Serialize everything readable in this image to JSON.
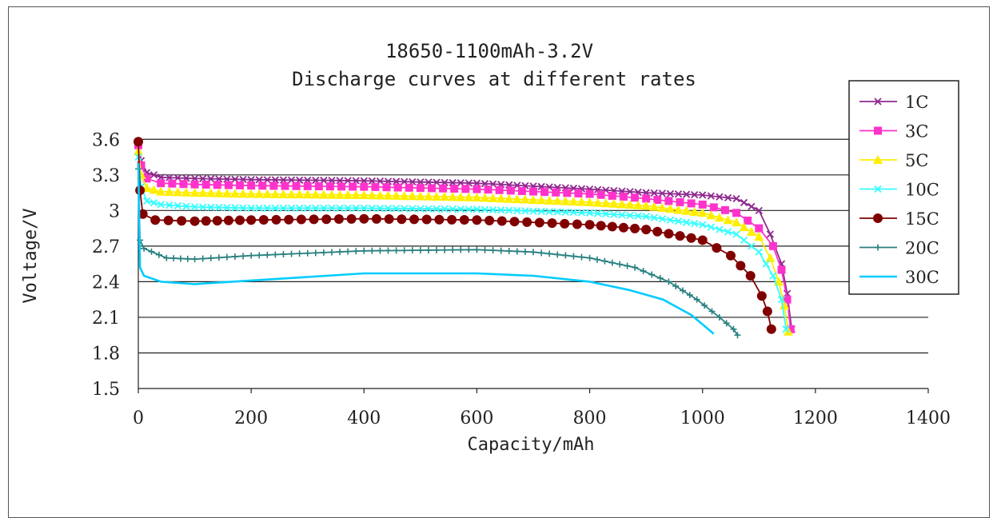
{
  "chart_data": {
    "type": "line",
    "title": "18650-1100mAh-3.2V",
    "subtitle": "Discharge curves at different rates",
    "xlabel": "Capacity/mAh",
    "ylabel": "Voltage/V",
    "xlim": [
      0,
      1400
    ],
    "ylim": [
      1.5,
      3.75
    ],
    "xticks": [
      "0",
      "200",
      "400",
      "600",
      "800",
      "1000",
      "1200",
      "1400"
    ],
    "yticks": [
      "3.6",
      "3.3",
      "3",
      "2.7",
      "2.4",
      "2.1",
      "1.8",
      "1.5"
    ],
    "grid": true,
    "legend": "right",
    "series": [
      {
        "name": "1C",
        "color": "#8e2a8e",
        "marker": "x",
        "points": [
          [
            0,
            3.58
          ],
          [
            5,
            3.42
          ],
          [
            15,
            3.32
          ],
          [
            40,
            3.28
          ],
          [
            100,
            3.27
          ],
          [
            200,
            3.26
          ],
          [
            400,
            3.25
          ],
          [
            600,
            3.23
          ],
          [
            800,
            3.18
          ],
          [
            900,
            3.15
          ],
          [
            1000,
            3.13
          ],
          [
            1060,
            3.1
          ],
          [
            1100,
            3.0
          ],
          [
            1120,
            2.8
          ],
          [
            1140,
            2.55
          ],
          [
            1150,
            2.3
          ],
          [
            1158,
            2.0
          ]
        ]
      },
      {
        "name": "3C",
        "color": "#ff33cc",
        "marker": "square",
        "points": [
          [
            0,
            3.55
          ],
          [
            5,
            3.38
          ],
          [
            15,
            3.27
          ],
          [
            40,
            3.23
          ],
          [
            100,
            3.22
          ],
          [
            200,
            3.21
          ],
          [
            400,
            3.2
          ],
          [
            600,
            3.18
          ],
          [
            800,
            3.14
          ],
          [
            900,
            3.1
          ],
          [
            1000,
            3.05
          ],
          [
            1060,
            2.98
          ],
          [
            1100,
            2.85
          ],
          [
            1125,
            2.7
          ],
          [
            1140,
            2.5
          ],
          [
            1150,
            2.25
          ],
          [
            1156,
            2.0
          ]
        ]
      },
      {
        "name": "5C",
        "color": "#ffee00",
        "marker": "triangle",
        "points": [
          [
            0,
            3.5
          ],
          [
            5,
            3.3
          ],
          [
            15,
            3.19
          ],
          [
            40,
            3.16
          ],
          [
            100,
            3.15
          ],
          [
            200,
            3.14
          ],
          [
            400,
            3.13
          ],
          [
            600,
            3.11
          ],
          [
            800,
            3.07
          ],
          [
            900,
            3.04
          ],
          [
            1000,
            2.98
          ],
          [
            1060,
            2.9
          ],
          [
            1100,
            2.78
          ],
          [
            1120,
            2.6
          ],
          [
            1135,
            2.4
          ],
          [
            1145,
            2.2
          ],
          [
            1152,
            1.98
          ]
        ]
      },
      {
        "name": "10C",
        "color": "#33ffff",
        "marker": "x",
        "points": [
          [
            0,
            3.45
          ],
          [
            5,
            3.2
          ],
          [
            15,
            3.08
          ],
          [
            40,
            3.05
          ],
          [
            100,
            3.03
          ],
          [
            200,
            3.02
          ],
          [
            400,
            3.02
          ],
          [
            600,
            3.01
          ],
          [
            800,
            2.98
          ],
          [
            900,
            2.95
          ],
          [
            1000,
            2.88
          ],
          [
            1060,
            2.8
          ],
          [
            1100,
            2.65
          ],
          [
            1125,
            2.45
          ],
          [
            1140,
            2.25
          ],
          [
            1148,
            2.0
          ]
        ]
      },
      {
        "name": "15C",
        "color": "#800000",
        "marker": "circle",
        "points": [
          [
            0,
            3.58
          ],
          [
            3,
            3.17
          ],
          [
            8,
            2.97
          ],
          [
            30,
            2.92
          ],
          [
            100,
            2.91
          ],
          [
            200,
            2.92
          ],
          [
            400,
            2.93
          ],
          [
            600,
            2.92
          ],
          [
            800,
            2.88
          ],
          [
            900,
            2.84
          ],
          [
            1000,
            2.75
          ],
          [
            1050,
            2.62
          ],
          [
            1085,
            2.45
          ],
          [
            1105,
            2.28
          ],
          [
            1115,
            2.15
          ],
          [
            1122,
            2.0
          ]
        ]
      },
      {
        "name": "20C",
        "color": "#2a8080",
        "marker": "plus",
        "points": [
          [
            0,
            3.35
          ],
          [
            3,
            2.75
          ],
          [
            10,
            2.68
          ],
          [
            50,
            2.6
          ],
          [
            100,
            2.59
          ],
          [
            200,
            2.62
          ],
          [
            400,
            2.66
          ],
          [
            600,
            2.67
          ],
          [
            700,
            2.65
          ],
          [
            800,
            2.6
          ],
          [
            880,
            2.52
          ],
          [
            940,
            2.4
          ],
          [
            990,
            2.25
          ],
          [
            1030,
            2.1
          ],
          [
            1055,
            2.0
          ],
          [
            1062,
            1.95
          ]
        ]
      },
      {
        "name": "30C",
        "color": "#00ccff",
        "marker": "none",
        "points": [
          [
            0,
            3.4
          ],
          [
            3,
            2.52
          ],
          [
            10,
            2.45
          ],
          [
            40,
            2.4
          ],
          [
            100,
            2.38
          ],
          [
            200,
            2.41
          ],
          [
            300,
            2.44
          ],
          [
            400,
            2.47
          ],
          [
            500,
            2.47
          ],
          [
            600,
            2.47
          ],
          [
            700,
            2.45
          ],
          [
            800,
            2.4
          ],
          [
            870,
            2.33
          ],
          [
            930,
            2.25
          ],
          [
            980,
            2.12
          ],
          [
            1010,
            2.0
          ],
          [
            1020,
            1.96
          ]
        ]
      }
    ]
  }
}
